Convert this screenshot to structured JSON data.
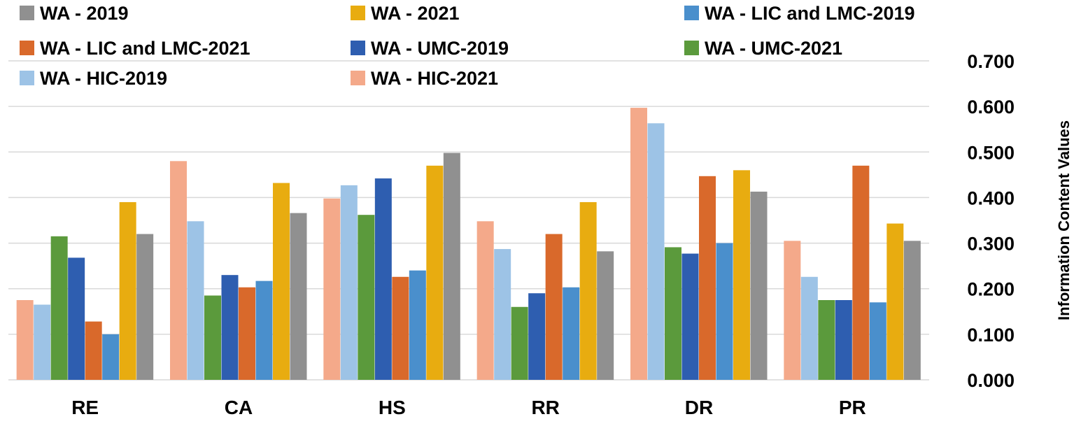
{
  "chart_data": {
    "type": "bar",
    "title": "",
    "xlabel": "",
    "ylabel": "Information Content Values",
    "y_axis_position": "right",
    "ylim": [
      0,
      0.7
    ],
    "yticks": [
      "0.000",
      "0.100",
      "0.200",
      "0.300",
      "0.400",
      "0.500",
      "0.600",
      "0.700"
    ],
    "grid": true,
    "legend_position": "top-left",
    "categories": [
      "RE",
      "CA",
      "HS",
      "RR",
      "DR",
      "PR"
    ],
    "series": [
      {
        "name": "WA - HIC-2021",
        "color": "#F4A98A",
        "values": [
          0.175,
          0.48,
          0.398,
          0.348,
          0.597,
          0.305
        ]
      },
      {
        "name": "WA - HIC-2019",
        "color": "#9DC3E6",
        "values": [
          0.165,
          0.348,
          0.427,
          0.287,
          0.563,
          0.226
        ]
      },
      {
        "name": "WA - UMC-2021",
        "color": "#5B9A3C",
        "values": [
          0.315,
          0.185,
          0.362,
          0.16,
          0.291,
          0.175
        ]
      },
      {
        "name": "WA - UMC-2019",
        "color": "#2E5EB0",
        "values": [
          0.268,
          0.23,
          0.442,
          0.19,
          0.277,
          0.175
        ]
      },
      {
        "name": "WA - LIC and LMC-2021",
        "color": "#D9692B",
        "values": [
          0.128,
          0.203,
          0.226,
          0.32,
          0.447,
          0.47
        ]
      },
      {
        "name": "WA - LIC and LMC-2019",
        "color": "#4A8FCC",
        "values": [
          0.1,
          0.217,
          0.24,
          0.203,
          0.3,
          0.17
        ]
      },
      {
        "name": "WA - 2021",
        "color": "#E8AC10",
        "values": [
          0.39,
          0.432,
          0.47,
          0.39,
          0.46,
          0.343
        ]
      },
      {
        "name": "WA - 2019",
        "color": "#909090",
        "values": [
          0.32,
          0.366,
          0.498,
          0.282,
          0.413,
          0.305
        ]
      }
    ],
    "legend_order": [
      "WA - 2019",
      "WA - 2021",
      "WA - LIC and LMC-2019",
      "WA - LIC and LMC-2021",
      "WA - UMC-2019",
      "WA - UMC-2021",
      "WA - HIC-2019",
      "WA - HIC-2021"
    ]
  }
}
